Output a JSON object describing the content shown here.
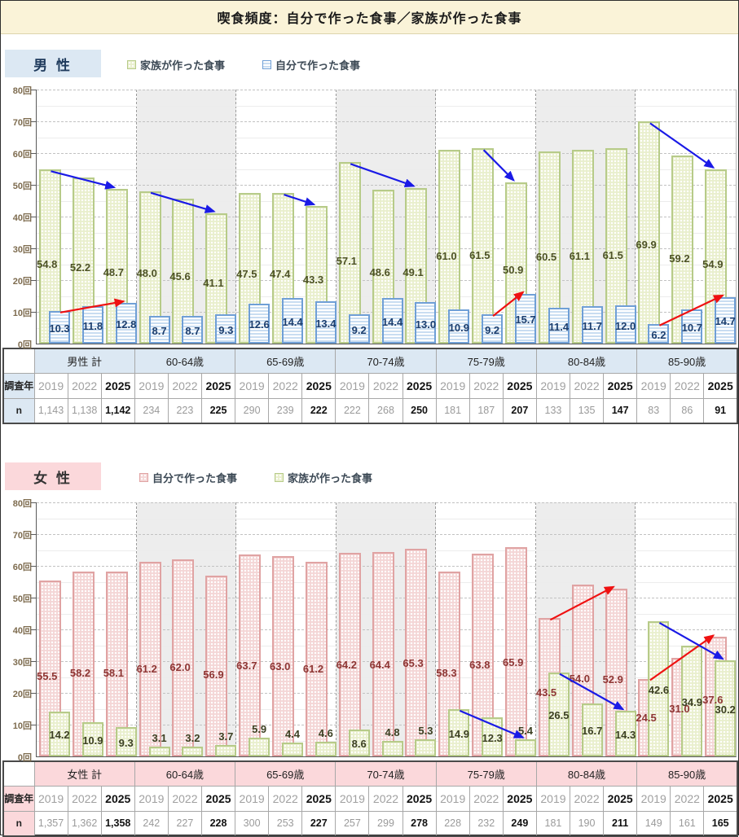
{
  "title": "喫食頻度：自分で作った食事／家族が作った食事",
  "y_axis": {
    "min": 0,
    "max": 80,
    "step": 10,
    "minor_step": 5,
    "unit": "回"
  },
  "emphasized_year": "2025",
  "chart_data": [
    {
      "id": "male",
      "type": "bar",
      "header": "男 性",
      "theme": {
        "band_bg": "#dce8f3",
        "header_text": "#1e3a5c"
      },
      "years": [
        "2019",
        "2022",
        "2025"
      ],
      "row_labels": {
        "year": "調査年",
        "n": "n"
      },
      "categories": [
        "男性 計",
        "60-64歳",
        "65-69歳",
        "70-74歳",
        "75-79歳",
        "80-84歳",
        "85-90歳"
      ],
      "series": [
        {
          "key": "family",
          "name": "家族が作った食事",
          "pattern": "dots",
          "fill": "#e9efcd",
          "dot": "#ffffff",
          "border": "#b7cb89",
          "label_color": "#4d5226",
          "values": [
            [
              54.8,
              52.2,
              48.7
            ],
            [
              48.0,
              45.6,
              41.1
            ],
            [
              47.5,
              47.4,
              43.3
            ],
            [
              57.1,
              48.6,
              49.1
            ],
            [
              61.0,
              61.5,
              50.9
            ],
            [
              60.5,
              61.1,
              61.5
            ],
            [
              69.9,
              59.2,
              54.9
            ]
          ]
        },
        {
          "key": "self",
          "name": "自分で作った食事",
          "pattern": "hstripes",
          "fill": "#ffffff",
          "stripe": "#c9ddf1",
          "border": "#6f9fd6",
          "label_color": "#1c3e6e",
          "values": [
            [
              10.3,
              11.8,
              12.8
            ],
            [
              8.7,
              8.7,
              9.3
            ],
            [
              12.6,
              14.4,
              13.4
            ],
            [
              9.2,
              14.4,
              13.0
            ],
            [
              10.9,
              9.2,
              15.7
            ],
            [
              11.4,
              11.7,
              12.0
            ],
            [
              6.2,
              10.7,
              14.7
            ]
          ]
        }
      ],
      "n": [
        [
          "1,143",
          "1,138",
          "1,142"
        ],
        [
          "234",
          "223",
          "225"
        ],
        [
          "290",
          "239",
          "222"
        ],
        [
          "222",
          "268",
          "250"
        ],
        [
          "181",
          "187",
          "207"
        ],
        [
          "133",
          "135",
          "147"
        ],
        [
          "83",
          "86",
          "91"
        ]
      ],
      "arrows": [
        {
          "cat": 0,
          "series": 0,
          "from": 0,
          "to": 2,
          "color": "#1a1ae6"
        },
        {
          "cat": 0,
          "series": 1,
          "from": 0,
          "to": 2,
          "color": "#ef1111"
        },
        {
          "cat": 1,
          "series": 0,
          "from": 0,
          "to": 2,
          "color": "#1a1ae6"
        },
        {
          "cat": 2,
          "series": 0,
          "from": 1,
          "to": 2,
          "color": "#1a1ae6"
        },
        {
          "cat": 3,
          "series": 0,
          "from": 0,
          "to": 2,
          "color": "#1a1ae6"
        },
        {
          "cat": 4,
          "series": 0,
          "from": 1,
          "to": 2,
          "color": "#1a1ae6"
        },
        {
          "cat": 4,
          "series": 1,
          "from": 1,
          "to": 2,
          "color": "#ef1111"
        },
        {
          "cat": 6,
          "series": 0,
          "from": 0,
          "to": 2,
          "color": "#1a1ae6"
        },
        {
          "cat": 6,
          "series": 1,
          "from": 0,
          "to": 2,
          "color": "#ef1111"
        }
      ]
    },
    {
      "id": "female",
      "type": "bar",
      "header": "女 性",
      "theme": {
        "band_bg": "#fbd8db",
        "header_text": "#333333"
      },
      "years": [
        "2019",
        "2022",
        "2025"
      ],
      "row_labels": {
        "year": "調査年",
        "n": "n"
      },
      "categories": [
        "女性 計",
        "60-64歳",
        "65-69歳",
        "70-74歳",
        "75-79歳",
        "80-84歳",
        "85-90歳"
      ],
      "series": [
        {
          "key": "self",
          "name": "自分で作った食事",
          "pattern": "dots",
          "fill": "#f4d6d6",
          "dot": "#ffffff",
          "border": "#e0a3a3",
          "label_color": "#8e3634",
          "values": [
            [
              55.5,
              58.2,
              58.1
            ],
            [
              61.2,
              62.0,
              56.9
            ],
            [
              63.7,
              63.0,
              61.2
            ],
            [
              64.2,
              64.4,
              65.3
            ],
            [
              58.3,
              63.8,
              65.9
            ],
            [
              43.5,
              54.0,
              52.9
            ],
            [
              24.5,
              31.0,
              37.6
            ]
          ]
        },
        {
          "key": "family",
          "name": "家族が作った食事",
          "pattern": "dots",
          "fill": "#e9efcd",
          "dot": "#ffffff",
          "border": "#b7cb89",
          "label_color": "#3c4022",
          "values": [
            [
              14.2,
              10.9,
              9.3
            ],
            [
              3.1,
              3.2,
              3.7
            ],
            [
              5.9,
              4.4,
              4.6
            ],
            [
              8.6,
              4.8,
              5.3
            ],
            [
              14.9,
              12.3,
              5.4
            ],
            [
              26.5,
              16.7,
              14.3
            ],
            [
              42.6,
              34.9,
              30.2
            ]
          ]
        }
      ],
      "n": [
        [
          "1,357",
          "1,362",
          "1,358"
        ],
        [
          "242",
          "227",
          "228"
        ],
        [
          "300",
          "253",
          "227"
        ],
        [
          "257",
          "299",
          "278"
        ],
        [
          "228",
          "232",
          "249"
        ],
        [
          "181",
          "190",
          "211"
        ],
        [
          "149",
          "161",
          "165"
        ]
      ],
      "arrows": [
        {
          "cat": 4,
          "series": 1,
          "from": 0,
          "to": 2,
          "color": "#1a1ae6"
        },
        {
          "cat": 5,
          "series": 0,
          "from": 0,
          "to": 2,
          "color": "#ef1111"
        },
        {
          "cat": 5,
          "series": 1,
          "from": 0,
          "to": 2,
          "color": "#1a1ae6"
        },
        {
          "cat": 6,
          "series": 0,
          "from": 0,
          "to": 2,
          "color": "#ef1111"
        },
        {
          "cat": 6,
          "series": 1,
          "from": 0,
          "to": 2,
          "color": "#1a1ae6"
        }
      ]
    }
  ]
}
